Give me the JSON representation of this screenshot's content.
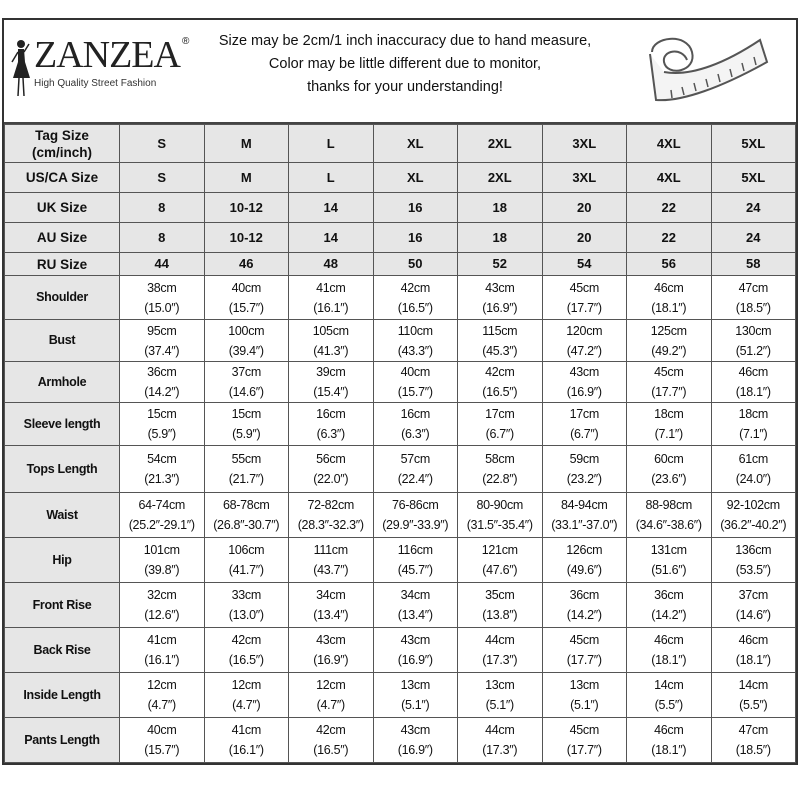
{
  "header": {
    "brand": "ZANZEA",
    "registered": "®",
    "tagline": "High Quality Street Fashion",
    "notice": [
      "Size may be 2cm/1 inch inaccuracy due to hand measure,",
      "Color may be little different due to monitor,",
      "thanks for your understanding!"
    ],
    "icon": "measuring-tape-icon"
  },
  "size_rows": [
    {
      "label": "Tag Size\n(cm/inch)",
      "cells": [
        "S",
        "M",
        "L",
        "XL",
        "2XL",
        "3XL",
        "4XL",
        "5XL"
      ]
    },
    {
      "label": "US/CA Size",
      "cells": [
        "S",
        "M",
        "L",
        "XL",
        "2XL",
        "3XL",
        "4XL",
        "5XL"
      ]
    },
    {
      "label": "UK Size",
      "cells": [
        "8",
        "10-12",
        "14",
        "16",
        "18",
        "20",
        "22",
        "24"
      ]
    },
    {
      "label": "AU Size",
      "cells": [
        "8",
        "10-12",
        "14",
        "16",
        "18",
        "20",
        "22",
        "24"
      ]
    },
    {
      "label": "RU Size",
      "cells": [
        "44",
        "46",
        "48",
        "50",
        "52",
        "54",
        "56",
        "58"
      ]
    }
  ],
  "measure_rows": [
    {
      "label": "Shoulder",
      "cm": [
        "38cm",
        "40cm",
        "41cm",
        "42cm",
        "43cm",
        "45cm",
        "46cm",
        "47cm"
      ],
      "inch": [
        "(15.0″)",
        "(15.7″)",
        "(16.1″)",
        "(16.5″)",
        "(16.9″)",
        "(17.7″)",
        "(18.1″)",
        "(18.5″)"
      ]
    },
    {
      "label": "Bust",
      "cm": [
        "95cm",
        "100cm",
        "105cm",
        "110cm",
        "115cm",
        "120cm",
        "125cm",
        "130cm"
      ],
      "inch": [
        "(37.4″)",
        "(39.4″)",
        "(41.3″)",
        "(43.3″)",
        "(45.3″)",
        "(47.2″)",
        "(49.2″)",
        "(51.2″)"
      ]
    },
    {
      "label": "Armhole",
      "cm": [
        "36cm",
        "37cm",
        "39cm",
        "40cm",
        "42cm",
        "43cm",
        "45cm",
        "46cm"
      ],
      "inch": [
        "(14.2″)",
        "(14.6″)",
        "(15.4″)",
        "(15.7″)",
        "(16.5″)",
        "(16.9″)",
        "(17.7″)",
        "(18.1″)"
      ]
    },
    {
      "label": "Sleeve length",
      "cm": [
        "15cm",
        "15cm",
        "16cm",
        "16cm",
        "17cm",
        "17cm",
        "18cm",
        "18cm"
      ],
      "inch": [
        "(5.9″)",
        "(5.9″)",
        "(6.3″)",
        "(6.3″)",
        "(6.7″)",
        "(6.7″)",
        "(7.1″)",
        "(7.1″)"
      ]
    },
    {
      "label": "Tops Length",
      "cm": [
        "54cm",
        "55cm",
        "56cm",
        "57cm",
        "58cm",
        "59cm",
        "60cm",
        "61cm"
      ],
      "inch": [
        "(21.3″)",
        "(21.7″)",
        "(22.0″)",
        "(22.4″)",
        "(22.8″)",
        "(23.2″)",
        "(23.6″)",
        "(24.0″)"
      ]
    },
    {
      "label": "Waist",
      "cm": [
        "64-74cm",
        "68-78cm",
        "72-82cm",
        "76-86cm",
        "80-90cm",
        "84-94cm",
        "88-98cm",
        "92-102cm"
      ],
      "inch": [
        "(25.2″-29.1″)",
        "(26.8″-30.7″)",
        "(28.3″-32.3″)",
        "(29.9″-33.9″)",
        "(31.5″-35.4″)",
        "(33.1″-37.0″)",
        "(34.6″-38.6″)",
        "(36.2″-40.2″)"
      ]
    },
    {
      "label": "Hip",
      "cm": [
        "101cm",
        "106cm",
        "111cm",
        "116cm",
        "121cm",
        "126cm",
        "131cm",
        "136cm"
      ],
      "inch": [
        "(39.8″)",
        "(41.7″)",
        "(43.7″)",
        "(45.7″)",
        "(47.6″)",
        "(49.6″)",
        "(51.6″)",
        "(53.5″)"
      ]
    },
    {
      "label": "Front Rise",
      "cm": [
        "32cm",
        "33cm",
        "34cm",
        "34cm",
        "35cm",
        "36cm",
        "36cm",
        "37cm"
      ],
      "inch": [
        "(12.6″)",
        "(13.0″)",
        "(13.4″)",
        "(13.4″)",
        "(13.8″)",
        "(14.2″)",
        "(14.2″)",
        "(14.6″)"
      ]
    },
    {
      "label": "Back Rise",
      "cm": [
        "41cm",
        "42cm",
        "43cm",
        "43cm",
        "44cm",
        "45cm",
        "46cm",
        "46cm"
      ],
      "inch": [
        "(16.1″)",
        "(16.5″)",
        "(16.9″)",
        "(16.9″)",
        "(17.3″)",
        "(17.7″)",
        "(18.1″)",
        "(18.1″)"
      ]
    },
    {
      "label": "Inside Length",
      "cm": [
        "12cm",
        "12cm",
        "12cm",
        "13cm",
        "13cm",
        "13cm",
        "14cm",
        "14cm"
      ],
      "inch": [
        "(4.7″)",
        "(4.7″)",
        "(4.7″)",
        "(5.1″)",
        "(5.1″)",
        "(5.1″)",
        "(5.5″)",
        "(5.5″)"
      ]
    },
    {
      "label": "Pants Length",
      "cm": [
        "40cm",
        "41cm",
        "42cm",
        "43cm",
        "44cm",
        "45cm",
        "46cm",
        "47cm"
      ],
      "inch": [
        "(15.7″)",
        "(16.1″)",
        "(16.5″)",
        "(16.9″)",
        "(17.3″)",
        "(17.7″)",
        "(18.1″)",
        "(18.5″)"
      ]
    }
  ]
}
